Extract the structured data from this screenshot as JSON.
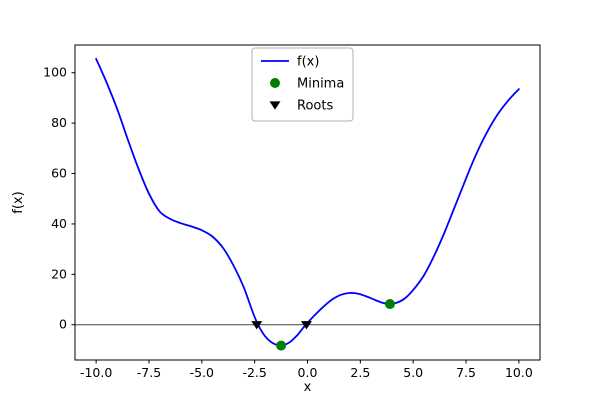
{
  "figure": {
    "background": "#ffffff"
  },
  "chart_data": {
    "type": "line",
    "title": "",
    "xlabel": "x",
    "ylabel": "f(x)",
    "xlim": [
      -11,
      11
    ],
    "ylim": [
      -14,
      111
    ],
    "xticks": [
      -10,
      -7.5,
      -5,
      -2.5,
      0,
      2.5,
      5,
      7.5,
      10
    ],
    "xtick_labels": [
      "-10.0",
      "-7.5",
      "-5.0",
      "-2.5",
      "0.0",
      "2.5",
      "5.0",
      "7.5",
      "10.0"
    ],
    "yticks": [
      0,
      20,
      40,
      60,
      80,
      100
    ],
    "ytick_labels": [
      "0",
      "20",
      "40",
      "60",
      "80",
      "100"
    ],
    "grid": false,
    "zero_line": {
      "y": 0,
      "color": "#444444",
      "linewidth": 1
    },
    "legend": {
      "position": "upper-center",
      "entries": [
        "f(x)",
        "Minima",
        "Roots"
      ]
    },
    "series": [
      {
        "name": "f(x)",
        "type": "line",
        "color": "#0000ff",
        "linewidth": 1.8,
        "x": [
          -10,
          -9.5,
          -9,
          -8.5,
          -8,
          -7.5,
          -7,
          -6.5,
          -6,
          -5.5,
          -5,
          -4.5,
          -4,
          -3.5,
          -3,
          -2.5,
          -2.1,
          -1.7,
          -1.25,
          -0.85,
          -0.5,
          -0.2,
          0.05,
          0.4,
          0.8,
          1.2,
          1.6,
          2,
          2.4,
          2.8,
          3.2,
          3.55,
          3.9,
          4.25,
          4.6,
          5,
          5.5,
          6,
          6.5,
          7,
          7.5,
          8,
          8.5,
          9,
          9.5,
          10
        ],
        "y": [
          105.5,
          96,
          85.5,
          73.5,
          62,
          52,
          45,
          42,
          40.3,
          39,
          37.5,
          35,
          30.5,
          23.5,
          14.5,
          3,
          -3.5,
          -7,
          -8.3,
          -7,
          -4.3,
          -1.2,
          1.2,
          4.3,
          7.5,
          10.2,
          11.9,
          12.6,
          12.3,
          11.2,
          9.8,
          8.7,
          8.2,
          8.8,
          10.4,
          13.8,
          19.5,
          27.5,
          37,
          47.5,
          58,
          68,
          76.5,
          83.5,
          89,
          93.5
        ]
      },
      {
        "name": "Minima",
        "type": "scatter",
        "marker": "circle",
        "color": "#008000",
        "points": [
          [
            -1.25,
            -8.3
          ],
          [
            3.9,
            8.2
          ]
        ]
      },
      {
        "name": "Roots",
        "type": "scatter",
        "marker": "triangle-down",
        "color": "#000000",
        "points": [
          [
            -2.4,
            0
          ],
          [
            -0.05,
            0
          ]
        ]
      }
    ]
  }
}
